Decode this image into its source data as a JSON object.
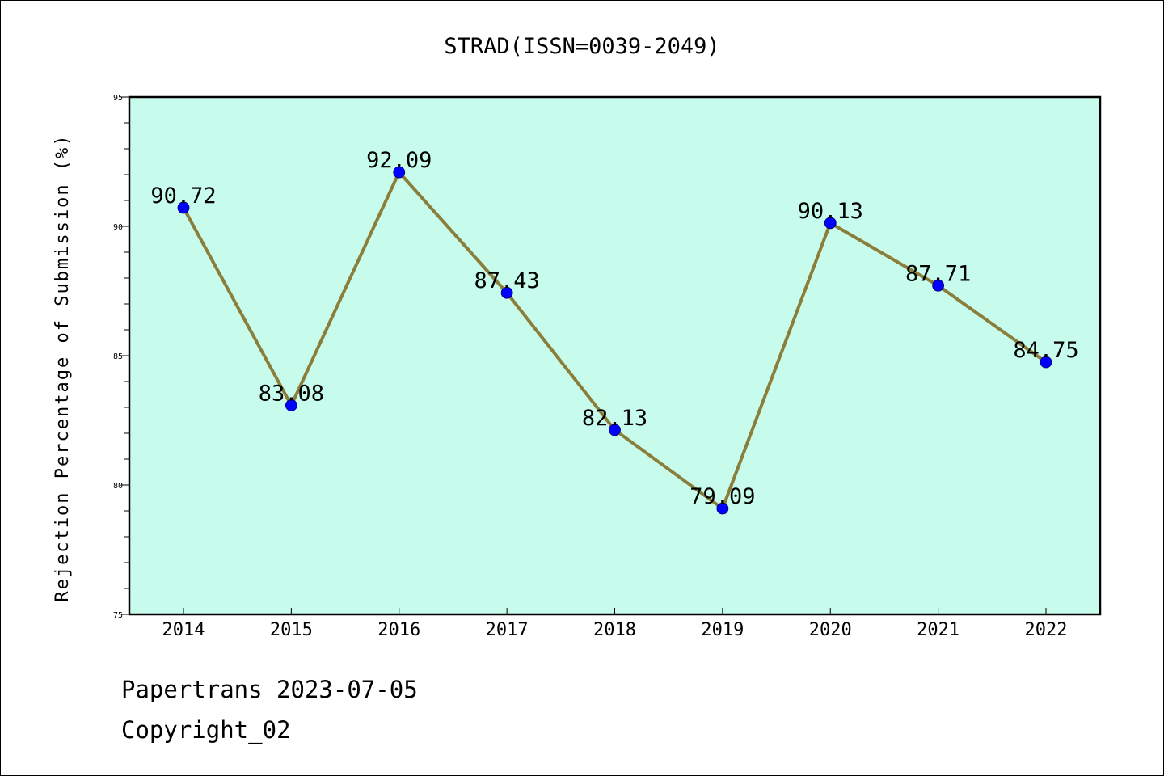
{
  "chart_data": {
    "type": "line",
    "title": "STRAD(ISSN=0039-2049)",
    "xlabel": "",
    "ylabel": "Rejection Percentage of Submission (%)",
    "categories": [
      "2014",
      "2015",
      "2016",
      "2017",
      "2018",
      "2019",
      "2020",
      "2021",
      "2022"
    ],
    "values": [
      90.72,
      83.08,
      92.09,
      87.43,
      82.13,
      79.09,
      90.13,
      87.71,
      84.75
    ],
    "labels": [
      "90.72",
      "83.08",
      "92.09",
      "87.43",
      "82.13",
      "79.09",
      "90.13",
      "87.71",
      "84.75"
    ],
    "ylim": [
      75,
      95
    ],
    "yticks": [
      "75",
      "80",
      "85",
      "90",
      "95"
    ],
    "grid": false,
    "colors": {
      "plot_background": "#c7fcec",
      "line": "#8b7d3a",
      "marker": "#0000ff"
    }
  },
  "footer": {
    "source": "Papertrans 2023-07-05",
    "copyright": "Copyright_02"
  }
}
